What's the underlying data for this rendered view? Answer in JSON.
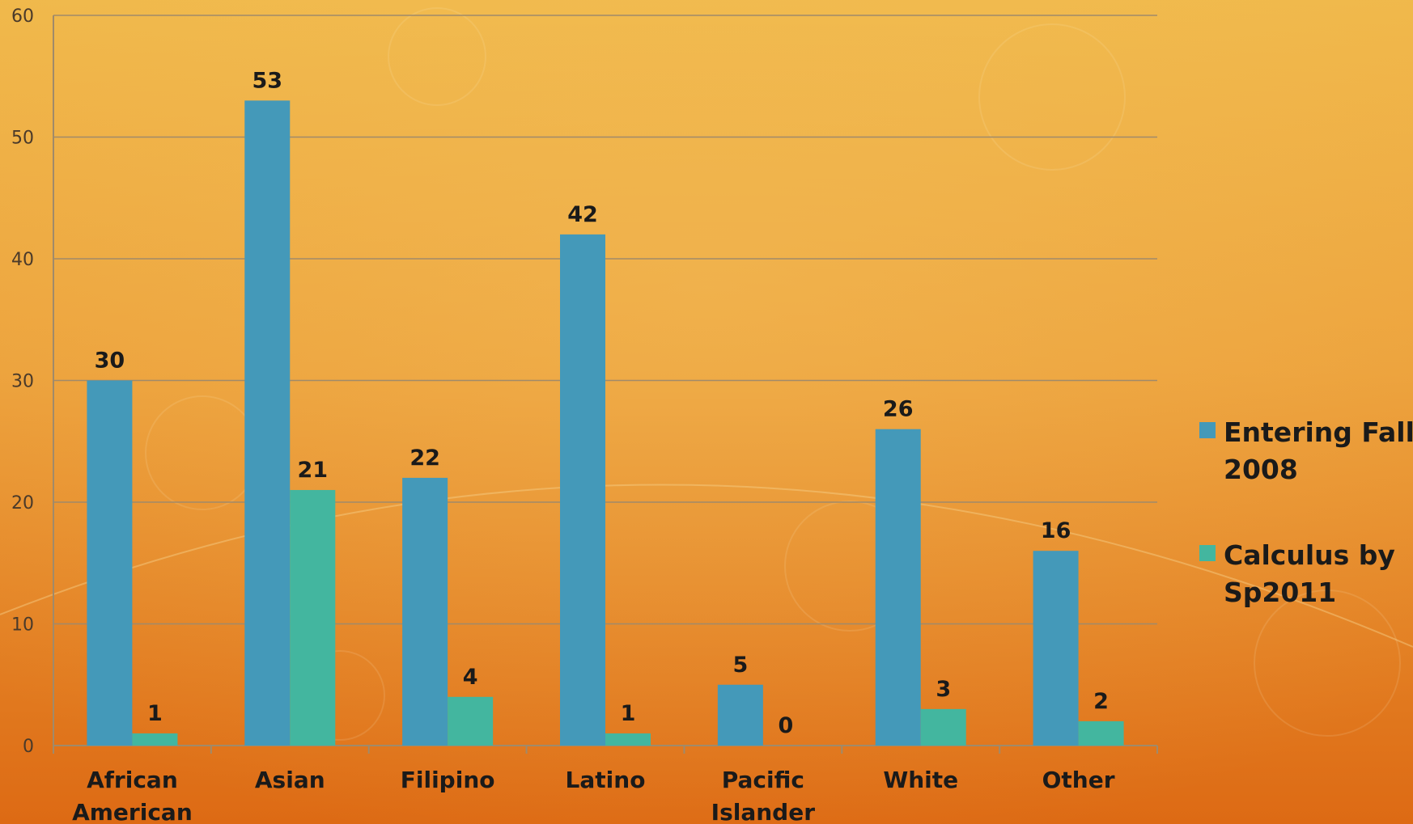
{
  "chart_data": {
    "type": "bar",
    "categories": [
      [
        "African",
        "American"
      ],
      [
        "Asian"
      ],
      [
        "Filipino"
      ],
      [
        "Latino"
      ],
      [
        "Pacific",
        "Islander"
      ],
      [
        "White"
      ],
      [
        "Other"
      ]
    ],
    "series": [
      {
        "name": "Entering Fall 2008",
        "legend_lines": [
          "Entering Fall",
          "2008"
        ],
        "color": "#4499b9",
        "values": [
          30,
          53,
          22,
          42,
          5,
          26,
          16
        ]
      },
      {
        "name": "Calculus by Sp2011",
        "legend_lines": [
          "Calculus by",
          "Sp2011"
        ],
        "color": "#43b69f",
        "values": [
          1,
          21,
          4,
          1,
          0,
          3,
          2
        ]
      }
    ],
    "ylim": [
      0,
      60
    ],
    "yticks": [
      0,
      10,
      20,
      30,
      40,
      50,
      60
    ],
    "grid": true,
    "legend_position": "right",
    "title": "",
    "xlabel": "",
    "ylabel": ""
  }
}
